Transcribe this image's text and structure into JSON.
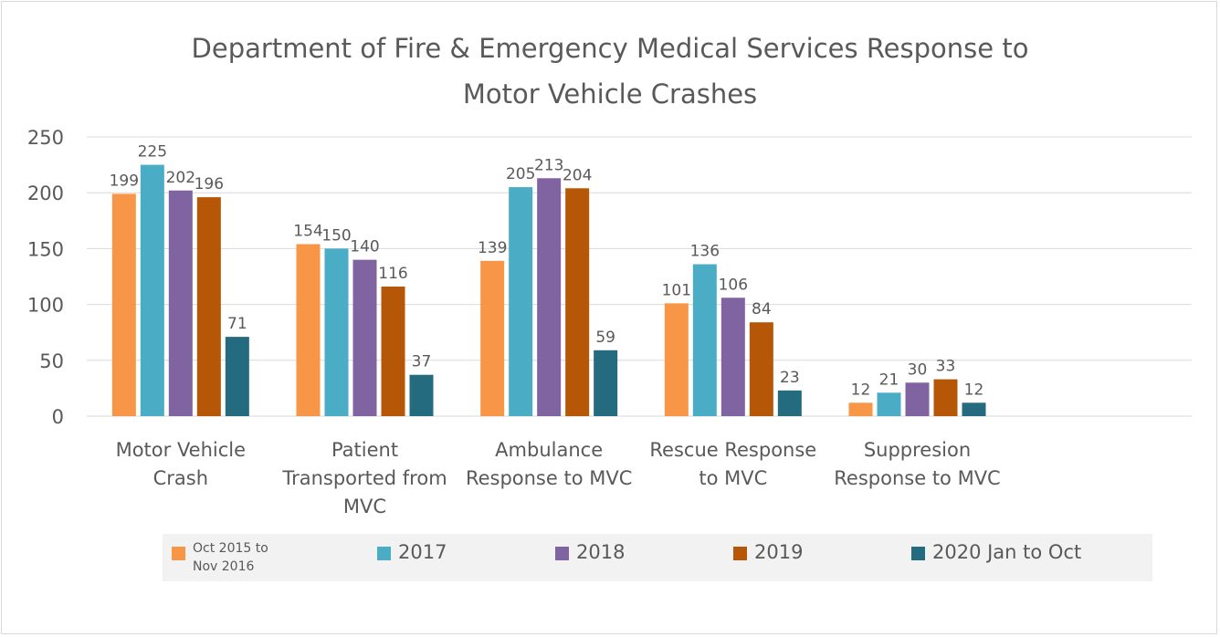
{
  "chart_data": {
    "type": "bar",
    "title": "Department of Fire & Emergency Medical Services Response to Motor Vehicle Crashes",
    "categories": [
      "Motor Vehicle Crash",
      "Patient Transported from MVC",
      "Ambulance Response to MVC",
      "Rescue Response to MVC",
      "Suppresion Response to MVC",
      null
    ],
    "series": [
      {
        "name": "Oct 2015 to Nov 2016",
        "color": "#f79646",
        "values": [
          199,
          154,
          139,
          101,
          12,
          null
        ]
      },
      {
        "name": "2017",
        "color": "#4bacc6",
        "values": [
          225,
          150,
          205,
          136,
          21,
          null
        ]
      },
      {
        "name": "2018",
        "color": "#8064a2",
        "values": [
          202,
          140,
          213,
          106,
          30,
          null
        ]
      },
      {
        "name": "2019",
        "color": "#b65708",
        "values": [
          196,
          116,
          204,
          84,
          33,
          null
        ]
      },
      {
        "name": "2020 Jan to Oct",
        "color": "#256b7f",
        "values": [
          71,
          37,
          59,
          23,
          12,
          null
        ]
      }
    ],
    "ylim": [
      0,
      250
    ],
    "yticks": [
      0,
      50,
      100,
      150,
      200,
      250
    ],
    "grid": true,
    "legend": "bottom"
  }
}
